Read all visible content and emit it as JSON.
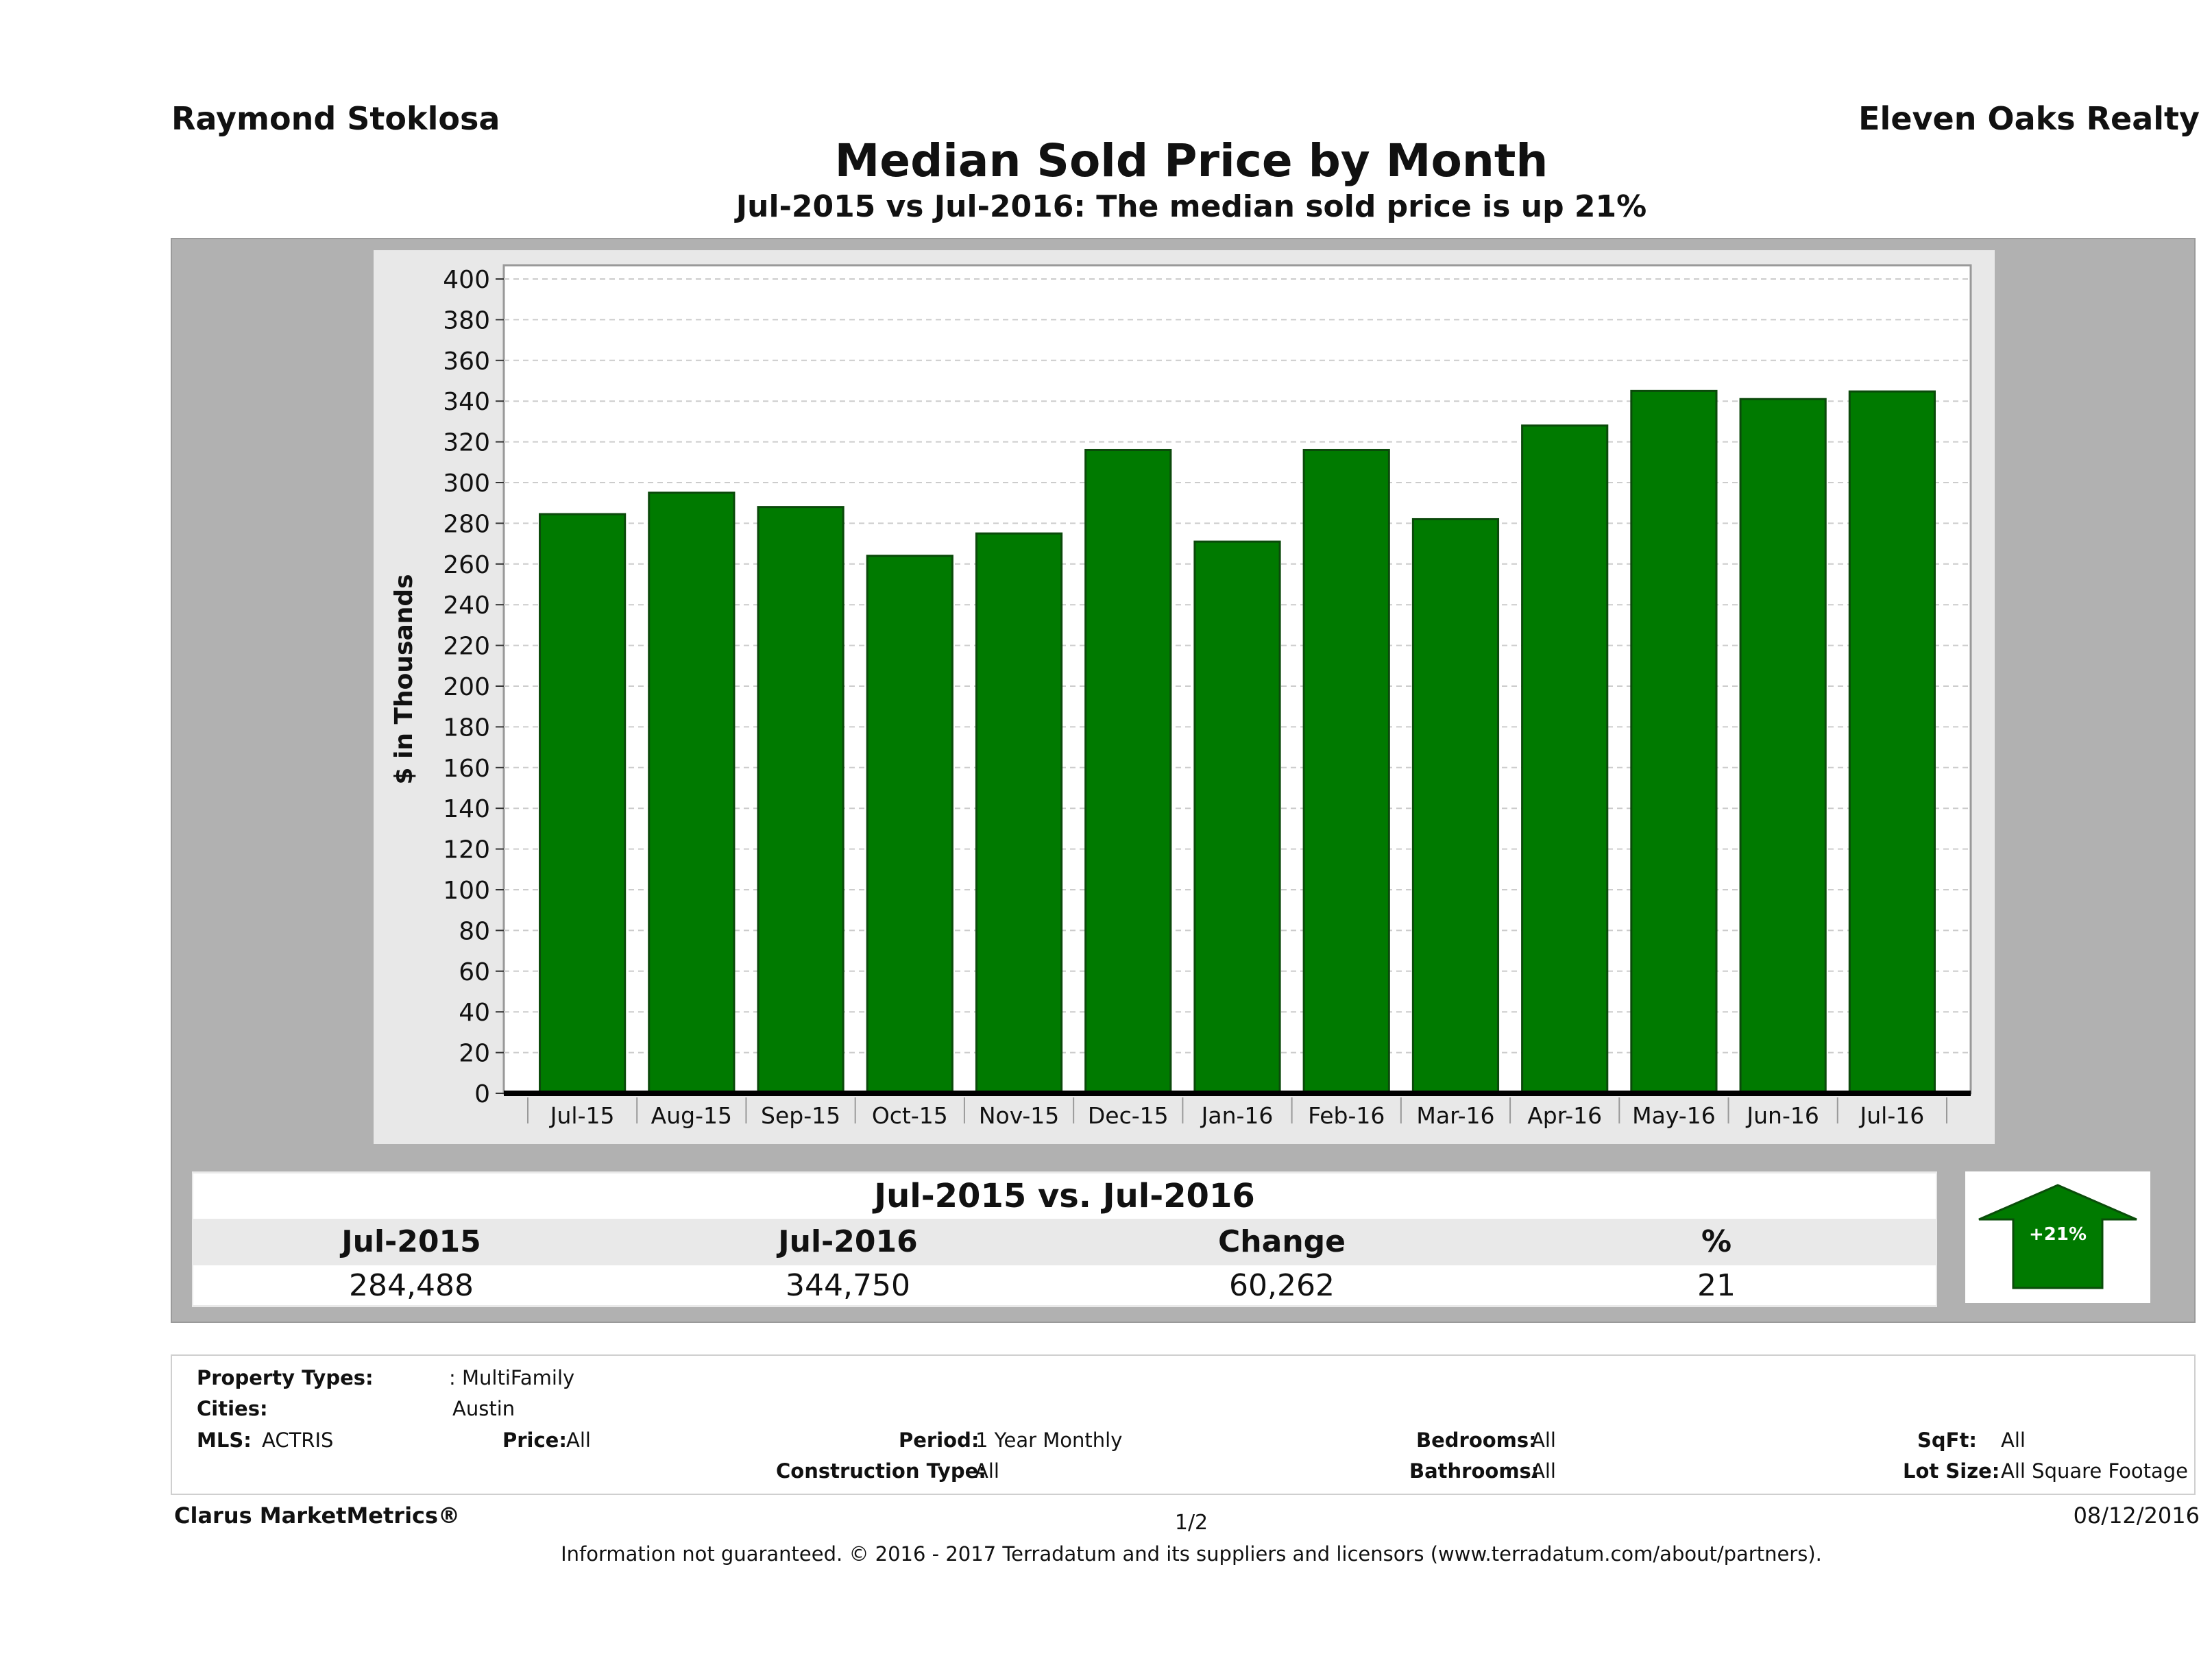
{
  "header": {
    "agent": "Raymond Stoklosa",
    "company": "Eleven Oaks Realty",
    "title": "Median Sold Price by Month",
    "subtitle": "Jul-2015 vs Jul-2016: The median sold price is up 21%"
  },
  "chart_data": {
    "type": "bar",
    "categories": [
      "Jul-15",
      "Aug-15",
      "Sep-15",
      "Oct-15",
      "Nov-15",
      "Dec-15",
      "Jan-16",
      "Feb-16",
      "Mar-16",
      "Apr-16",
      "May-16",
      "Jun-16",
      "Jul-16"
    ],
    "values": [
      284.488,
      295,
      288,
      264,
      275,
      316,
      271,
      316,
      282,
      328,
      345,
      341,
      344.75
    ],
    "ylabel": "$ in Thousands",
    "xlabel": "",
    "ylim": [
      0,
      400
    ],
    "yticks": [
      0,
      20,
      40,
      60,
      80,
      100,
      120,
      140,
      160,
      180,
      200,
      220,
      240,
      260,
      280,
      300,
      320,
      340,
      360,
      380,
      400
    ],
    "grid": true,
    "bar_color": "#007a00"
  },
  "comparison": {
    "title": "Jul-2015 vs. Jul-2016",
    "headers": [
      "Jul-2015",
      "Jul-2016",
      "Change",
      "%"
    ],
    "values": [
      "284,488",
      "344,750",
      "60,262",
      "21"
    ],
    "badge": "+21%"
  },
  "filters": {
    "property_types_label": "Property Types:",
    "property_types_value": ": MultiFamily",
    "cities_label": "Cities:",
    "cities_value": "Austin",
    "mls_label": "MLS:",
    "mls_value": "ACTRIS",
    "price_label": "Price:",
    "price_value": "All",
    "period_label": "Period:",
    "period_value": "1 Year Monthly",
    "construction_label": "Construction Type:",
    "construction_value": "All",
    "bedrooms_label": "Bedrooms:",
    "bedrooms_value": "All",
    "bathrooms_label": "Bathrooms:",
    "bathrooms_value": "All",
    "sqft_label": "SqFt:",
    "sqft_value": "All",
    "lotsize_label": "Lot Size:",
    "lotsize_value": "All Square Footage"
  },
  "footer": {
    "brand": "Clarus MarketMetrics®",
    "page": "1/2",
    "date": "08/12/2016",
    "note": "Information not guaranteed. © 2016 - 2017 Terradatum and its suppliers and licensors (www.terradatum.com/about/partners)."
  }
}
